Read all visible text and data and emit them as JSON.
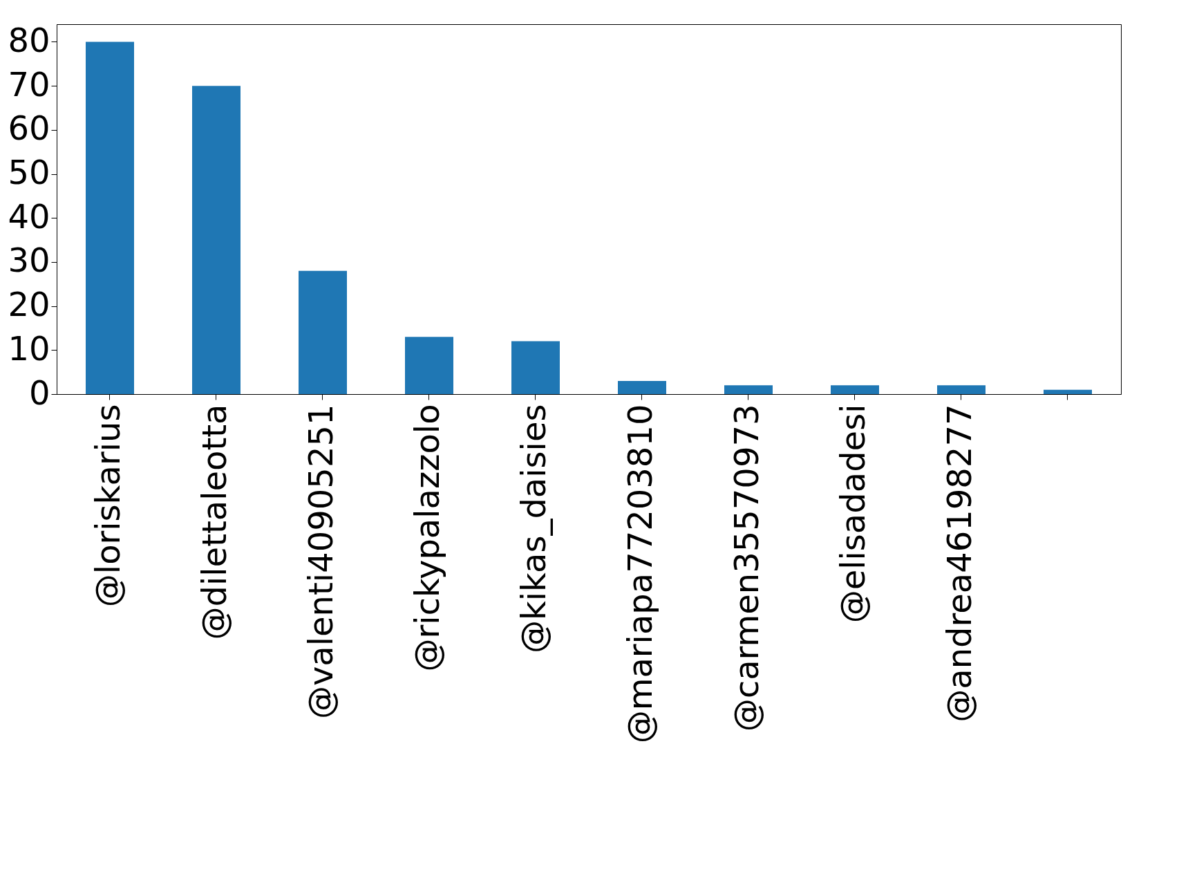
{
  "chart_data": {
    "type": "bar",
    "categories": [
      "@loriskarius",
      "@dilettaleotta",
      "@valenti40905251",
      "@rickypalazzolo",
      "@kikas_daisies",
      "@mariapa77203810",
      "@carmen35570973",
      "@elisadadesi",
      "@andrea46198277",
      null
    ],
    "values": [
      80,
      70,
      28,
      13,
      12,
      3,
      2,
      2,
      2,
      1
    ],
    "color": "#1f77b4",
    "ylim": [
      0,
      84
    ],
    "yticks": [
      0,
      10,
      20,
      30,
      40,
      50,
      60,
      70,
      80
    ],
    "grid": false
  }
}
